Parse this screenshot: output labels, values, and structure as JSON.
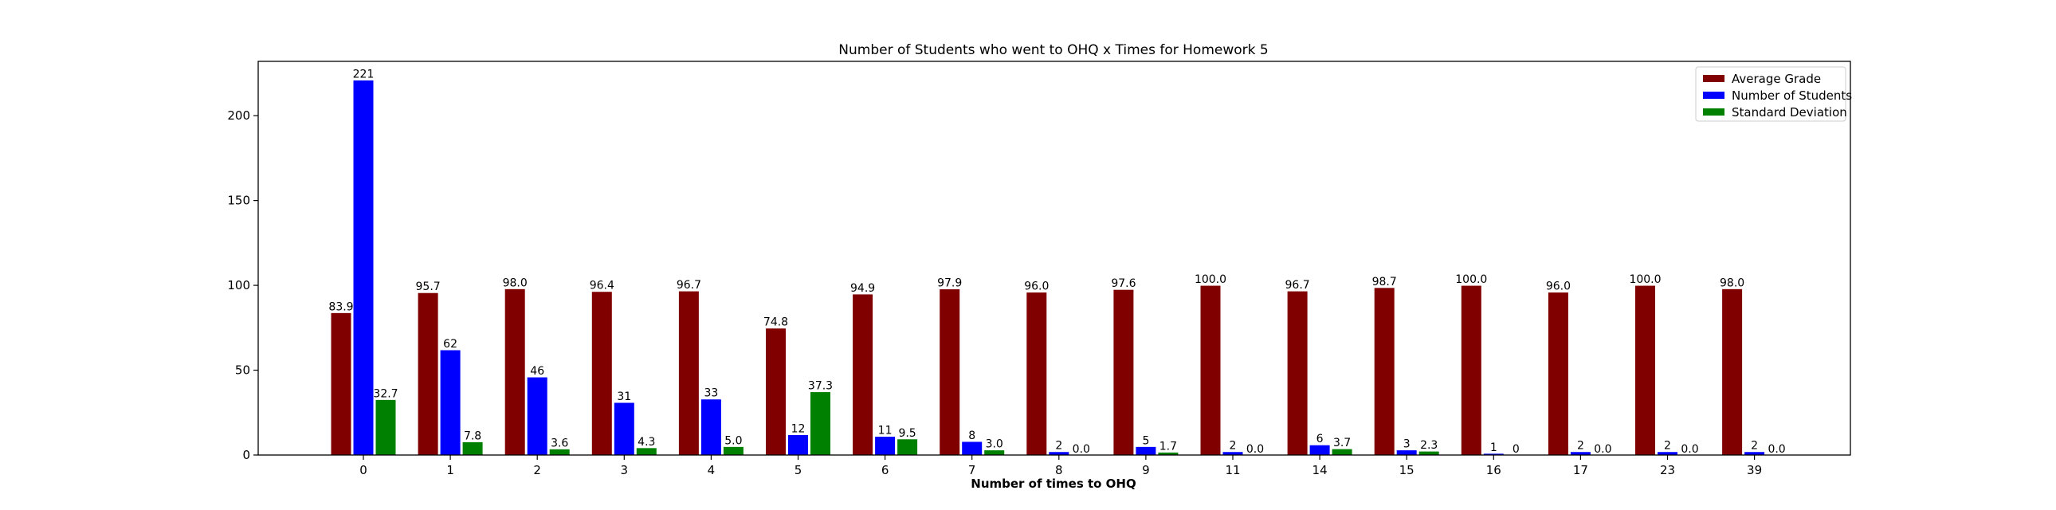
{
  "chart_data": {
    "type": "bar",
    "title": "Number of Students who went to OHQ x Times for Homework 5",
    "xlabel": "Number of times to OHQ",
    "ylabel": "",
    "ylim": [
      0,
      232
    ],
    "yticks": [
      0,
      50,
      100,
      150,
      200
    ],
    "grid": false,
    "legend_position": "top-right",
    "categories": [
      "0",
      "1",
      "2",
      "3",
      "4",
      "5",
      "6",
      "7",
      "8",
      "9",
      "11",
      "14",
      "15",
      "16",
      "17",
      "23",
      "39"
    ],
    "series": [
      {
        "name": "Average Grade",
        "color": "#800000",
        "values": [
          83.9,
          95.7,
          98.0,
          96.4,
          96.7,
          74.8,
          94.9,
          97.9,
          96.0,
          97.6,
          100.0,
          96.7,
          98.7,
          100.0,
          96.0,
          100.0,
          98.0
        ],
        "labels": [
          "83.9",
          "95.7",
          "98.0",
          "96.4",
          "96.7",
          "74.8",
          "94.9",
          "97.9",
          "96.0",
          "97.6",
          "100.0",
          "96.7",
          "98.7",
          "100.0",
          "96.0",
          "100.0",
          "98.0"
        ]
      },
      {
        "name": "Number of Students",
        "color": "#0000ff",
        "values": [
          221,
          62,
          46,
          31,
          33,
          12,
          11,
          8,
          2,
          5,
          2,
          6,
          3,
          1,
          2,
          2,
          2
        ],
        "labels": [
          "221",
          "62",
          "46",
          "31",
          "33",
          "12",
          "11",
          "8",
          "2",
          "5",
          "2",
          "6",
          "3",
          "1",
          "2",
          "2",
          "2"
        ]
      },
      {
        "name": "Standard Deviation",
        "color": "#008000",
        "values": [
          32.7,
          7.8,
          3.6,
          4.3,
          5.0,
          37.3,
          9.5,
          3.0,
          0.0,
          1.7,
          0.0,
          3.7,
          2.3,
          0,
          0.0,
          0.0,
          0.0
        ],
        "labels": [
          "32.7",
          "7.8",
          "3.6",
          "4.3",
          "5.0",
          "37.3",
          "9.5",
          "3.0",
          "0.0",
          "1.7",
          "0.0",
          "3.7",
          "2.3",
          "0",
          "0.0",
          "0.0",
          "0.0"
        ]
      }
    ]
  }
}
